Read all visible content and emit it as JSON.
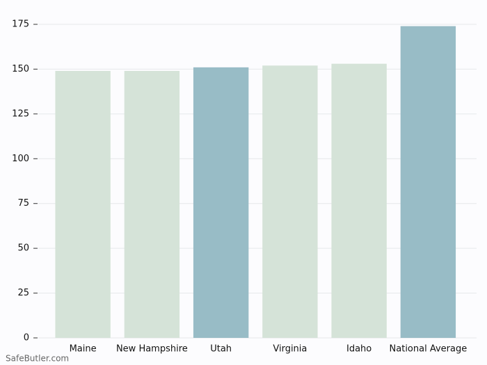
{
  "chart_data": {
    "type": "bar",
    "categories": [
      "Maine",
      "New Hampshire",
      "Utah",
      "Virginia",
      "Idaho",
      "National Average"
    ],
    "values": [
      149,
      149,
      151,
      152,
      153,
      174
    ],
    "colors": [
      "#d5e3d8",
      "#d5e3d8",
      "#98bcc6",
      "#d5e3d8",
      "#d5e3d8",
      "#98bcc6"
    ],
    "ylim": [
      0,
      175
    ],
    "yticks": [
      0,
      25,
      50,
      75,
      100,
      125,
      150,
      175
    ],
    "grid": true,
    "watermark": "SafeButler.com"
  }
}
